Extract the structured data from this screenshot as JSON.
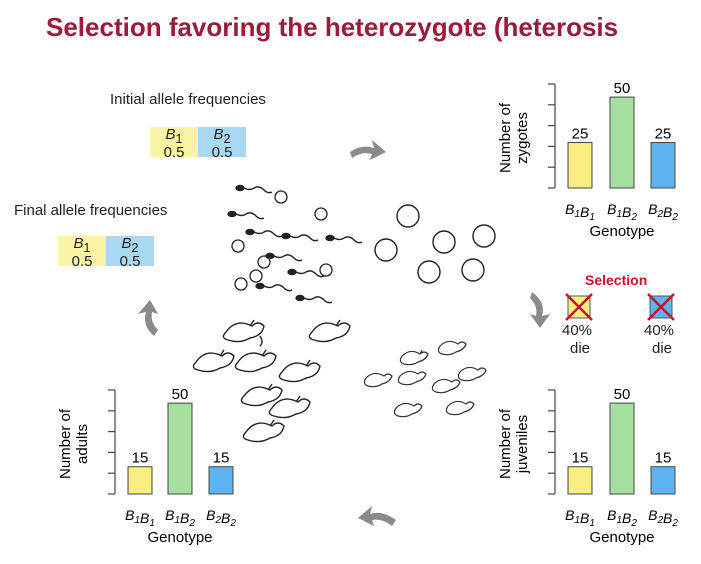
{
  "title": "Selection favoring the heterozygote (heterosis",
  "initial": {
    "label": "Initial allele frequencies",
    "alleles": [
      {
        "sym": "B",
        "sub": "1",
        "value": "0.5"
      },
      {
        "sym": "B",
        "sub": "2",
        "value": "0.5"
      }
    ]
  },
  "final": {
    "label": "Final allele frequencies",
    "alleles": [
      {
        "sym": "B",
        "sub": "1",
        "value": "0.5"
      },
      {
        "sym": "B",
        "sub": "2",
        "value": "0.5"
      }
    ]
  },
  "genotype_labels": [
    "B1B1",
    "B1B2",
    "B2B2"
  ],
  "xlabel": "Genotype",
  "colors": {
    "b1b1": "#f8ee82",
    "b1b2": "#a6e0a0",
    "b2b2": "#5eb4f0",
    "title": "#9b1b3a",
    "selection": "#c8102e",
    "arrow": "#8a8a8a"
  },
  "chart_data": [
    {
      "type": "bar",
      "name": "zygotes",
      "ylabel": "Number of zygotes",
      "categories": [
        "B1B1",
        "B1B2",
        "B2B2"
      ],
      "values": [
        25,
        50,
        25
      ],
      "value_labels": [
        "25",
        "50",
        "25"
      ],
      "xlabel": "Genotype",
      "ylim": [
        0,
        55
      ]
    },
    {
      "type": "bar",
      "name": "juveniles",
      "ylabel": "Number of juveniles",
      "categories": [
        "B1B1",
        "B1B2",
        "B2B2"
      ],
      "values": [
        15,
        50,
        15
      ],
      "value_labels": [
        "15",
        "50",
        "15"
      ],
      "xlabel": "Genotype",
      "ylim": [
        0,
        55
      ]
    },
    {
      "type": "bar",
      "name": "adults",
      "ylabel": "Number of adults",
      "categories": [
        "B1B1",
        "B1B2",
        "B2B2"
      ],
      "values": [
        15,
        50,
        15
      ],
      "value_labels": [
        "15",
        "50",
        "15"
      ],
      "xlabel": "Genotype",
      "ylim": [
        0,
        55
      ]
    }
  ],
  "selection": {
    "label": "Selection",
    "items": [
      {
        "genotype": "B1B1",
        "pct": "40%",
        "fate": "die"
      },
      {
        "genotype": "B2B2",
        "pct": "40%",
        "fate": "die"
      }
    ]
  }
}
